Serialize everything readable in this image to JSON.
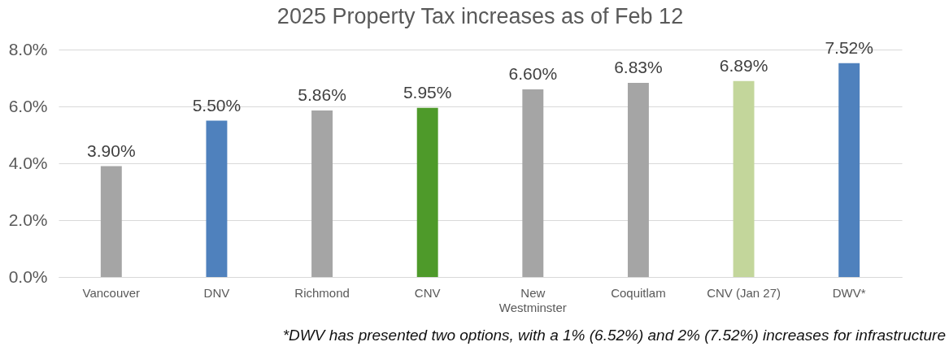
{
  "chart_data": {
    "type": "bar",
    "title": "2025 Property Tax  increases as of Feb 12",
    "categories": [
      "Vancouver",
      "DNV",
      "Richmond",
      "CNV",
      "New Westminster",
      "Coquitlam",
      "CNV (Jan 27)",
      "DWV*"
    ],
    "values": [
      3.9,
      5.5,
      5.86,
      5.95,
      6.6,
      6.83,
      6.89,
      7.52
    ],
    "colors": [
      "#a5a5a5",
      "#4f81bd",
      "#a5a5a5",
      "#4e9a2a",
      "#a5a5a5",
      "#a5a5a5",
      "#c3d69b",
      "#4f81bd"
    ],
    "value_labels": [
      "3.90%",
      "5.50%",
      "5.86%",
      "5.95%",
      "6.60%",
      "6.83%",
      "6.89%",
      "7.52%"
    ],
    "ylim": [
      0,
      8
    ],
    "yticks": [
      {
        "value": 0,
        "label": "0.0%"
      },
      {
        "value": 2,
        "label": "2.0%"
      },
      {
        "value": 4,
        "label": "4.0%"
      },
      {
        "value": 6,
        "label": "6.0%"
      },
      {
        "value": 8,
        "label": "8.0%"
      }
    ],
    "grid": "y",
    "annotations": [
      "*DWV has presented two options, with a 1% (6.52%) and 2% (7.52%) increases for infrastructure"
    ]
  }
}
